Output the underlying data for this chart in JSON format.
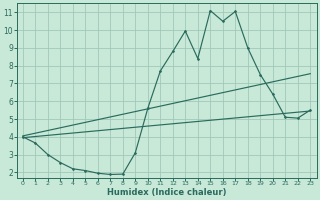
{
  "xlabel": "Humidex (Indice chaleur)",
  "bg_color": "#c8e8d8",
  "grid_color": "#a0c8b8",
  "line_color": "#2a6b5e",
  "xlim": [
    -0.5,
    23.5
  ],
  "ylim": [
    1.7,
    11.5
  ],
  "xticks": [
    0,
    1,
    2,
    3,
    4,
    5,
    6,
    7,
    8,
    9,
    10,
    11,
    12,
    13,
    14,
    15,
    16,
    17,
    18,
    19,
    20,
    21,
    22,
    23
  ],
  "yticks": [
    2,
    3,
    4,
    5,
    6,
    7,
    8,
    9,
    10,
    11
  ],
  "line1_x": [
    0,
    1,
    2,
    3,
    4,
    5,
    6,
    7,
    8,
    9,
    10,
    11,
    12,
    13,
    14,
    15,
    16,
    17,
    18,
    19,
    20,
    21,
    22,
    23
  ],
  "line1_y": [
    4.0,
    3.65,
    3.0,
    2.55,
    2.2,
    2.1,
    1.95,
    1.88,
    1.9,
    3.1,
    5.6,
    7.7,
    8.8,
    9.95,
    8.4,
    11.1,
    10.5,
    11.05,
    9.0,
    7.5,
    6.4,
    5.1,
    5.05,
    5.5
  ],
  "line2_x": [
    0,
    23
  ],
  "line2_y": [
    4.05,
    7.55
  ],
  "line3_x": [
    0,
    23
  ],
  "line3_y": [
    3.95,
    5.45
  ]
}
